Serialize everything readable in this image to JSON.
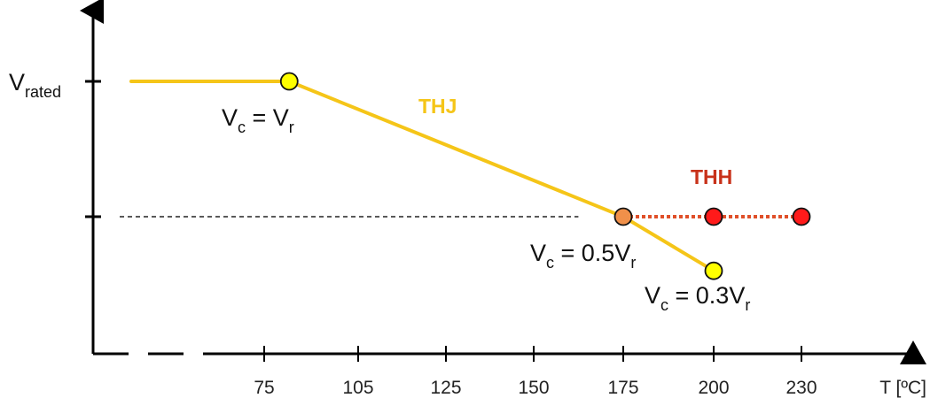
{
  "chart_data": {
    "type": "line",
    "x_axis": {
      "label": "T [ºC]",
      "ticks": [
        "75",
        "105",
        "125",
        "150",
        "175",
        "200",
        "230"
      ]
    },
    "y_axis": {
      "ticks": [
        {
          "label": "V",
          "label_sub": "rated",
          "fraction": 1.0
        },
        {
          "label": "",
          "label_sub": "",
          "fraction": 0.5
        }
      ]
    },
    "reference_line": {
      "y_fraction": 0.5,
      "x_end": 160
    },
    "series": [
      {
        "name": "THJ",
        "color": "#f5c518",
        "style": "solid",
        "points": [
          {
            "x": 45,
            "y_fraction": 1.0
          },
          {
            "x": 83,
            "y_fraction": 1.0
          },
          {
            "x": 175,
            "y_fraction": 0.5
          },
          {
            "x": 200,
            "y_fraction": 0.3
          }
        ]
      },
      {
        "name": "THH",
        "color": "#e0502a",
        "style": "dotted",
        "points": [
          {
            "x": 175,
            "y_fraction": 0.5
          },
          {
            "x": 200,
            "y_fraction": 0.5
          },
          {
            "x": 230,
            "y_fraction": 0.5
          }
        ]
      }
    ],
    "markers": [
      {
        "x": 83,
        "y_fraction": 1.0,
        "color": "#ffff00"
      },
      {
        "x": 175,
        "y_fraction": 0.5,
        "color": "#f0904a"
      },
      {
        "x": 200,
        "y_fraction": 0.5,
        "color": "#ff1a1a"
      },
      {
        "x": 230,
        "y_fraction": 0.5,
        "color": "#ff1a1a"
      },
      {
        "x": 200,
        "y_fraction": 0.3,
        "color": "#ffff00"
      }
    ],
    "annotations": [
      {
        "id": "a1",
        "x": 83,
        "y_fraction": 1.0,
        "parts": [
          "V",
          "c",
          " = V",
          "r"
        ]
      },
      {
        "id": "a2",
        "x": 175,
        "y_fraction": 0.5,
        "parts": [
          "V",
          "c",
          " = 0.5V",
          "r"
        ]
      },
      {
        "id": "a3",
        "x": 200,
        "y_fraction": 0.3,
        "parts": [
          "V",
          "c",
          " = 0.3V",
          "r"
        ]
      }
    ],
    "series_labels": [
      {
        "text": "THJ",
        "color": "#f5c518"
      },
      {
        "text": "THH",
        "color": "#c8321a"
      }
    ]
  }
}
